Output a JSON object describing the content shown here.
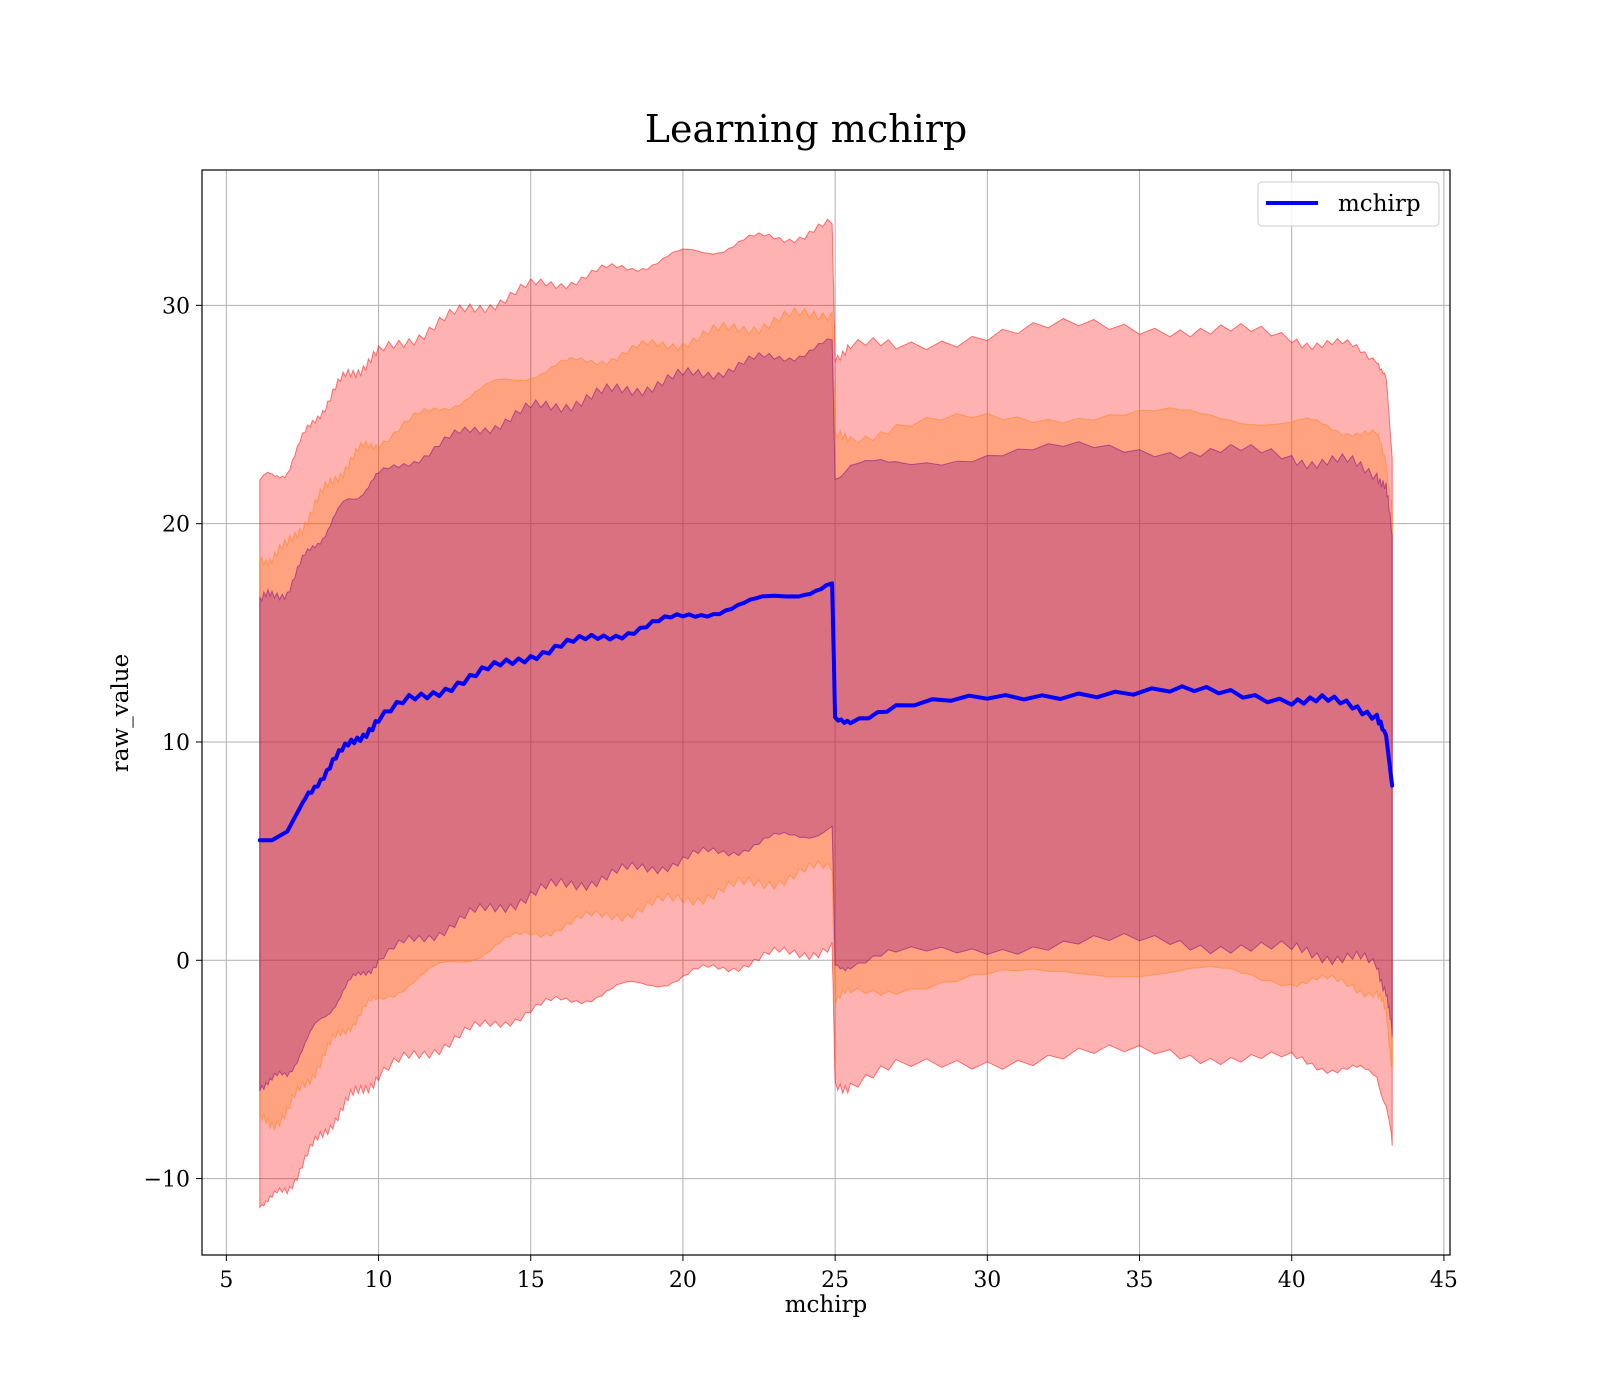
{
  "chart_data": {
    "type": "line",
    "title": "Learning mchirp",
    "xlabel": "mchirp",
    "ylabel": "raw_value",
    "xlim": [
      4.2,
      45.2
    ],
    "ylim": [
      -13.5,
      36.2
    ],
    "x_ticks": [
      5,
      10,
      15,
      20,
      25,
      30,
      35,
      40,
      45
    ],
    "x_tick_labels": [
      "5",
      "10",
      "15",
      "20",
      "25",
      "30",
      "35",
      "40",
      "45"
    ],
    "y_ticks": [
      -10,
      0,
      10,
      20,
      30
    ],
    "y_tick_labels": [
      "−10",
      "0",
      "10",
      "20",
      "30"
    ],
    "grid": true,
    "legend": {
      "placement": "top-right",
      "entries": [
        {
          "label": "mchirp",
          "color": "#0000ff"
        }
      ]
    },
    "series": [
      {
        "name": "mchirp",
        "kind": "line",
        "color": "#0000ff",
        "x": [
          6.1,
          6.5,
          7.0,
          7.5,
          8.0,
          8.5,
          9.0,
          9.5,
          10.0,
          11.0,
          12.0,
          13.0,
          14.0,
          15.0,
          16.0,
          17.0,
          18.0,
          19.0,
          20.0,
          21.0,
          22.0,
          23.0,
          24.0,
          24.9,
          25.0,
          25.5,
          27.0,
          30.0,
          33.0,
          36.0,
          38.0,
          40.0,
          41.0,
          42.0,
          42.8,
          43.1,
          43.3
        ],
        "y": [
          5.5,
          5.5,
          5.9,
          7.2,
          8.2,
          9.1,
          9.8,
          10.4,
          11.0,
          11.9,
          12.4,
          12.9,
          13.5,
          14.0,
          14.4,
          14.7,
          15.0,
          15.4,
          15.7,
          16.0,
          16.3,
          16.6,
          16.9,
          17.2,
          11.0,
          11.1,
          11.5,
          12.0,
          12.3,
          12.3,
          12.2,
          12.0,
          11.9,
          11.6,
          11.3,
          10.3,
          8.0
        ]
      }
    ],
    "bands": [
      {
        "kind": "band",
        "color": "#ff0000",
        "opacity": 0.3,
        "x": [
          6.1,
          6.5,
          7.0,
          7.5,
          8.0,
          8.5,
          9.0,
          9.5,
          10.0,
          11.0,
          12.0,
          13.0,
          14.0,
          15.0,
          16.0,
          17.0,
          18.0,
          19.0,
          20.0,
          21.0,
          22.0,
          23.0,
          24.0,
          24.9,
          25.0,
          25.5,
          27.0,
          30.0,
          33.0,
          36.0,
          38.0,
          40.0,
          41.0,
          42.0,
          42.8,
          43.1,
          43.3
        ],
        "upper": [
          22.0,
          22.1,
          22.5,
          23.8,
          25.0,
          26.0,
          26.8,
          27.3,
          27.7,
          28.5,
          29.2,
          29.8,
          30.3,
          30.8,
          31.1,
          31.4,
          31.7,
          32.0,
          32.3,
          32.6,
          32.9,
          33.1,
          33.3,
          33.6,
          27.8,
          28.0,
          28.2,
          28.7,
          29.0,
          29.0,
          28.8,
          28.5,
          28.3,
          28.0,
          27.7,
          26.5,
          23.0
        ],
        "lower": [
          -11.0,
          -11.0,
          -10.5,
          -9.3,
          -8.3,
          -7.3,
          -6.5,
          -5.8,
          -5.3,
          -4.5,
          -3.9,
          -3.3,
          -2.8,
          -2.3,
          -1.9,
          -1.6,
          -1.3,
          -1.0,
          -0.8,
          -0.4,
          -0.1,
          0.2,
          0.4,
          0.6,
          -5.8,
          -5.6,
          -5.0,
          -4.6,
          -4.3,
          -4.3,
          -4.4,
          -4.6,
          -4.8,
          -5.0,
          -5.4,
          -6.5,
          -8.5
        ]
      },
      {
        "kind": "band",
        "color": "#ff7f0e",
        "opacity": 0.3,
        "x": [
          6.1,
          6.5,
          7.0,
          7.5,
          8.0,
          8.5,
          9.0,
          9.5,
          10.0,
          11.0,
          12.0,
          13.0,
          14.0,
          15.0,
          16.0,
          17.0,
          18.0,
          19.0,
          20.0,
          21.0,
          22.0,
          23.0,
          24.0,
          24.9,
          25.0,
          25.5,
          27.0,
          30.0,
          33.0,
          36.0,
          38.0,
          40.0,
          41.0,
          42.0,
          42.8,
          43.1,
          43.3
        ],
        "upper": [
          18.4,
          18.5,
          18.9,
          20.0,
          21.0,
          22.0,
          22.8,
          23.4,
          23.8,
          24.6,
          25.3,
          25.9,
          26.4,
          26.9,
          27.2,
          27.5,
          27.8,
          28.1,
          28.4,
          28.7,
          29.0,
          29.3,
          29.5,
          29.8,
          23.8,
          24.0,
          24.4,
          24.8,
          25.0,
          25.0,
          24.9,
          24.6,
          24.5,
          24.3,
          23.9,
          23.0,
          20.5
        ],
        "lower": [
          -7.4,
          -7.4,
          -7.0,
          -5.8,
          -4.8,
          -3.8,
          -3.0,
          -2.3,
          -1.8,
          -1.0,
          -0.4,
          0.2,
          0.7,
          1.2,
          1.6,
          1.9,
          2.2,
          2.5,
          2.8,
          3.1,
          3.4,
          3.7,
          4.0,
          4.3,
          -1.8,
          -1.6,
          -1.2,
          -0.8,
          -0.5,
          -0.5,
          -0.6,
          -0.9,
          -1.0,
          -1.1,
          -1.5,
          -2.5,
          -4.8
        ]
      },
      {
        "kind": "band",
        "color": "#800080",
        "opacity": 0.3,
        "x": [
          6.1,
          6.5,
          7.0,
          7.5,
          8.0,
          8.5,
          9.0,
          9.5,
          10.0,
          11.0,
          12.0,
          13.0,
          14.0,
          15.0,
          16.0,
          17.0,
          18.0,
          19.0,
          20.0,
          21.0,
          22.0,
          23.0,
          24.0,
          24.9,
          25.0,
          25.5,
          27.0,
          30.0,
          33.0,
          36.0,
          38.0,
          40.0,
          41.0,
          42.0,
          42.8,
          43.1,
          43.3
        ],
        "upper": [
          16.5,
          16.6,
          17.0,
          18.2,
          19.2,
          20.2,
          21.0,
          21.6,
          22.1,
          22.9,
          23.6,
          24.2,
          24.7,
          25.2,
          25.5,
          25.8,
          26.1,
          26.4,
          26.7,
          27.0,
          27.3,
          27.6,
          27.9,
          28.2,
          22.3,
          22.5,
          22.8,
          23.2,
          23.4,
          23.4,
          23.3,
          23.0,
          22.9,
          22.7,
          22.4,
          21.5,
          19.5
        ],
        "lower": [
          -5.6,
          -5.6,
          -5.2,
          -4.0,
          -3.0,
          -2.0,
          -1.2,
          -0.5,
          0.0,
          0.8,
          1.4,
          2.0,
          2.5,
          3.0,
          3.4,
          3.7,
          4.0,
          4.3,
          4.6,
          4.9,
          5.2,
          5.5,
          5.8,
          6.1,
          -0.3,
          -0.1,
          0.2,
          0.6,
          0.8,
          0.8,
          0.7,
          0.4,
          0.3,
          0.1,
          -0.3,
          -1.3,
          -3.5
        ]
      }
    ]
  }
}
